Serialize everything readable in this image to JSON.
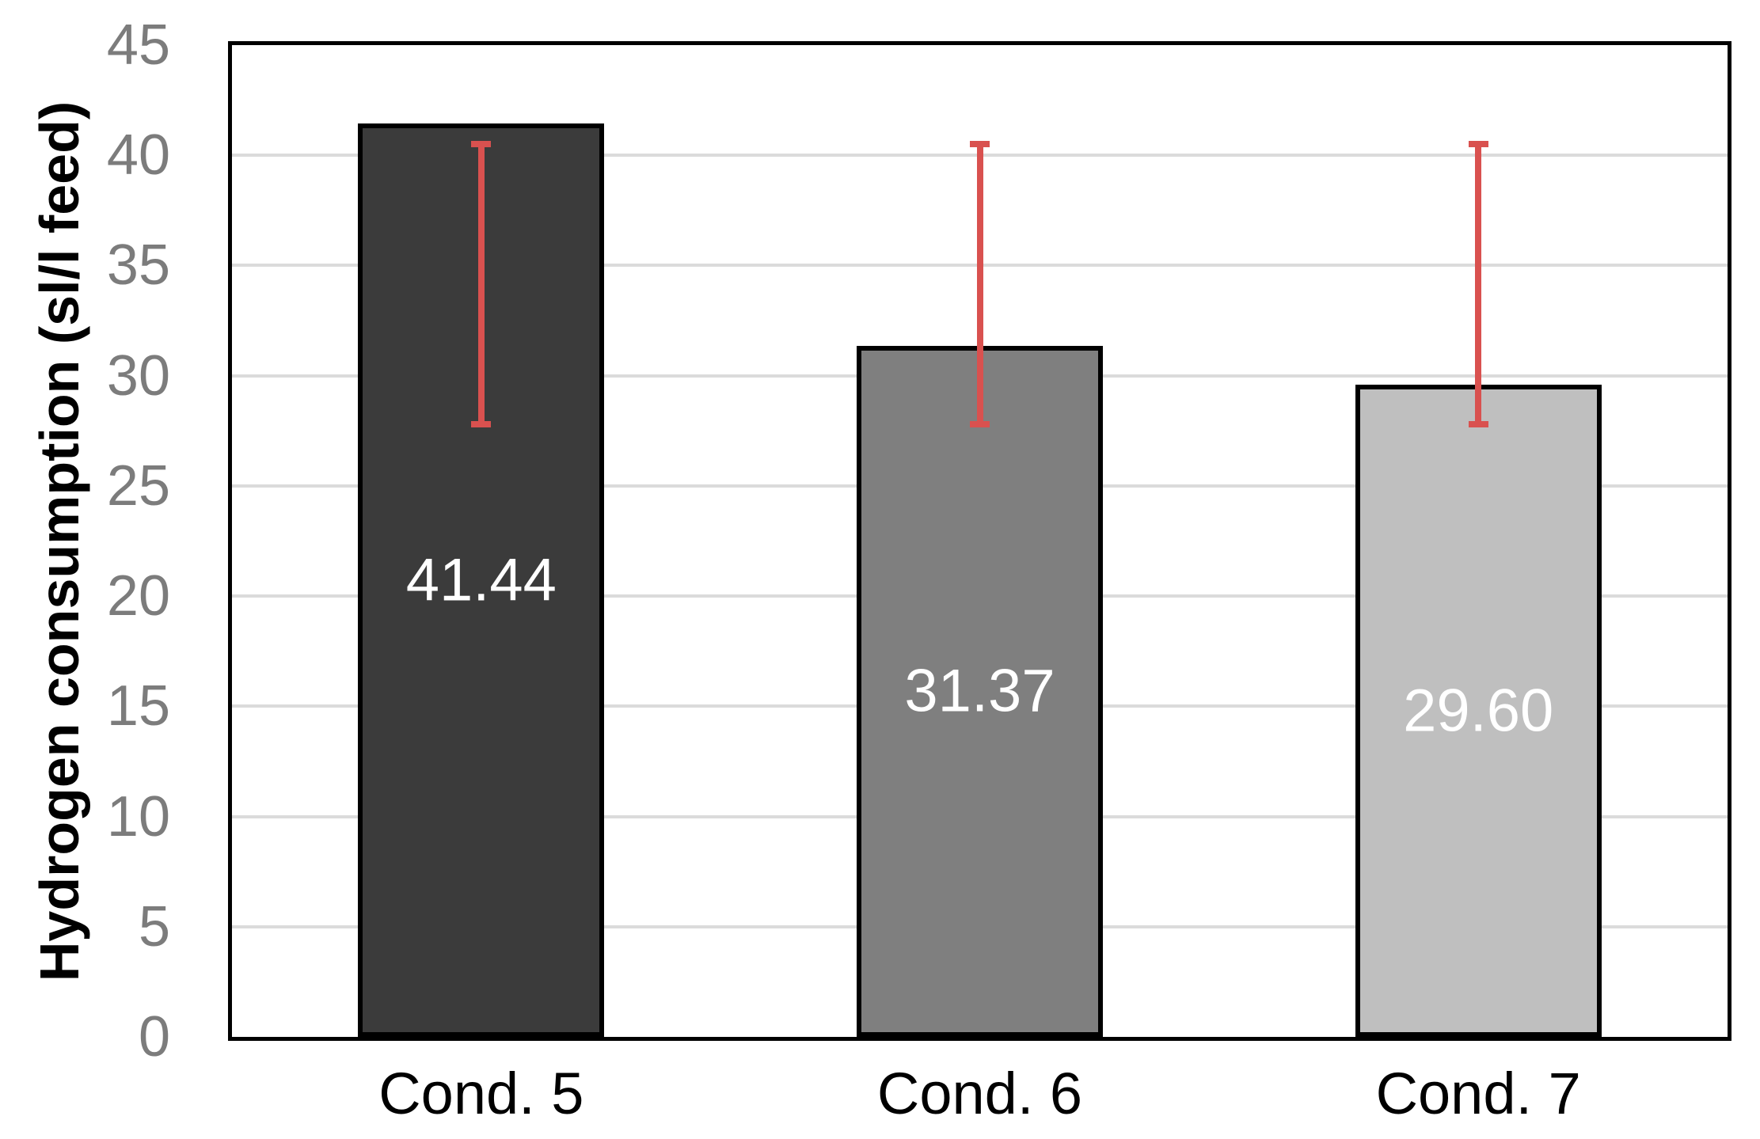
{
  "chart_data": {
    "type": "bar",
    "title": "",
    "xlabel": "",
    "ylabel": "Hydrogen consumption (sl/l feed)",
    "categories": [
      "Cond. 5",
      "Cond. 6",
      "Cond. 7"
    ],
    "values": [
      41.44,
      31.37,
      29.6
    ],
    "value_labels": [
      "41.44",
      "31.37",
      "29.60"
    ],
    "yticks": [
      0,
      5,
      10,
      15,
      20,
      25,
      30,
      35,
      40,
      45
    ],
    "ylim": [
      0,
      45
    ],
    "grid": true,
    "legend": "none",
    "error_bars": {
      "top_value": 40.5,
      "bottom_value": 27.8,
      "color": "#D9514F"
    },
    "colors": {
      "bar_fills": [
        "#3B3B3B",
        "#7F7F7F",
        "#BFBFBF"
      ],
      "bar_border": "#000000",
      "gridline": "#DBDBDB",
      "frame": "#000000",
      "tick_label": "#7C7C7C",
      "category_label": "#000000",
      "axis_title": "#000000",
      "data_label": "#FFFFFF",
      "background": "#FFFFFF"
    }
  }
}
